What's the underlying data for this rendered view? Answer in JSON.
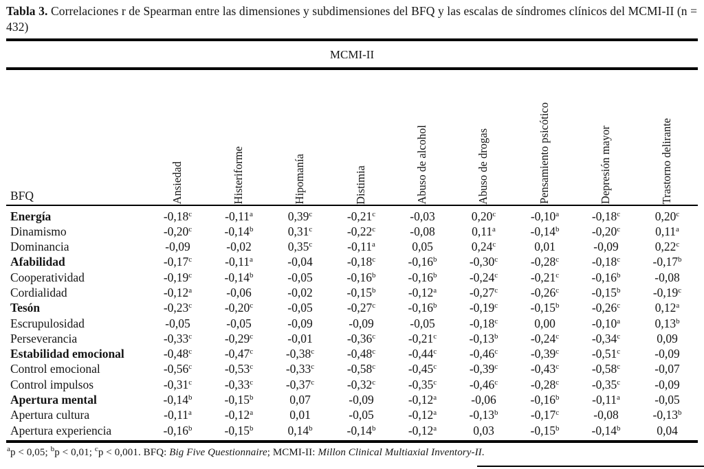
{
  "title": {
    "label": "Tabla 3.",
    "text": " Correlaciones r de Spearman entre las dimensiones y subdimensiones del BFQ y las escalas de síndromes clínicos del MCMI-II (n = 432)"
  },
  "group_header": "MCMI-II",
  "stub_header": "BFQ",
  "colors": {
    "text": "#141414",
    "background": "#ffffff",
    "rule": "#000000"
  },
  "table": {
    "columns": [
      "Ansiedad",
      "Histeriforme",
      "Hipomanía",
      "Distimia",
      "Abuso de alcohol",
      "Abuso de drogas",
      "Pensamiento psicótico",
      "Depresión mayor",
      "Trastorno delirante"
    ],
    "rows": [
      {
        "label": "Energía",
        "bold": true,
        "values": [
          "-0,18^c",
          "-0,11^a",
          "0,39^c",
          "-0,21^c",
          "-0,03",
          "0,20^c",
          "-0,10^a",
          "-0,18^c",
          "0,20^c"
        ]
      },
      {
        "label": "Dinamismo",
        "bold": false,
        "values": [
          "-0,20^c",
          "-0,14^b",
          "0,31^c",
          "-0,22^c",
          "-0,08",
          "0,11^a",
          "-0,14^b",
          "-0,20^c",
          "0,11^a"
        ]
      },
      {
        "label": "Dominancia",
        "bold": false,
        "values": [
          "-0,09",
          "-0,02",
          "0,35^c",
          "-0,11^a",
          "0,05",
          "0,24^c",
          "0,01",
          "-0,09",
          "0,22^c"
        ]
      },
      {
        "label": "Afabilidad",
        "bold": true,
        "values": [
          "-0,17^c",
          "-0,11^a",
          "-0,04",
          "-0,18^c",
          "-0,16^b",
          "-0,30^c",
          "-0,28^c",
          "-0,18^c",
          "-0,17^b"
        ]
      },
      {
        "label": "Cooperatividad",
        "bold": false,
        "values": [
          "-0,19^c",
          "-0,14^b",
          "-0,05",
          "-0,16^b",
          "-0,16^b",
          "-0,24^c",
          "-0,21^c",
          "-0,16^b",
          "-0,08"
        ]
      },
      {
        "label": "Cordialidad",
        "bold": false,
        "values": [
          "-0,12^a",
          "-0,06",
          "-0,02",
          "-0,15^b",
          "-0,12^a",
          "-0,27^c",
          "-0,26^c",
          "-0,15^b",
          "-0,19^c"
        ]
      },
      {
        "label": "Tesón",
        "bold": true,
        "values": [
          "-0,23^c",
          "-0,20^c",
          "-0,05",
          "-0,27^c",
          "-0,16^b",
          "-0,19^c",
          "-0,15^b",
          "-0,26^c",
          "0,12^a"
        ]
      },
      {
        "label": "Escrupulosidad",
        "bold": false,
        "values": [
          "-0,05",
          "-0,05",
          "-0,09",
          "-0,09",
          "-0,05",
          "-0,18^c",
          "0,00",
          "-0,10^a",
          "0,13^b"
        ]
      },
      {
        "label": "Perseverancia",
        "bold": false,
        "values": [
          "-0,33^c",
          "-0,29^c",
          "-0,01",
          "-0,36^c",
          "-0,21^c",
          "-0,13^b",
          "-0,24^c",
          "-0,34^c",
          "0,09"
        ]
      },
      {
        "label": "Estabilidad emocional",
        "bold": true,
        "values": [
          "-0,48^c",
          "-0,47^c",
          "-0,38^c",
          "-0,48^c",
          "-0,44^c",
          "-0,46^c",
          "-0,39^c",
          "-0,51^c",
          "-0,09"
        ]
      },
      {
        "label": "Control emocional",
        "bold": false,
        "values": [
          "-0,56^c",
          "-0,53^c",
          "-0,33^c",
          "-0,58^c",
          "-0,45^c",
          "-0,39^c",
          "-0,43^c",
          "-0,58^c",
          "-0,07"
        ]
      },
      {
        "label": "Control impulsos",
        "bold": false,
        "values": [
          "-0,31^c",
          "-0,33^c",
          "-0,37^c",
          "-0,32^c",
          "-0,35^c",
          "-0,46^c",
          "-0,28^c",
          "-0,35^c",
          "-0,09"
        ]
      },
      {
        "label": "Apertura mental",
        "bold": true,
        "values": [
          "-0,14^b",
          "-0,15^b",
          "0,07",
          "-0,09",
          "-0,12^a",
          "-0,06",
          "-0,16^b",
          "-0,11^a",
          "-0,05"
        ]
      },
      {
        "label": "Apertura cultura",
        "bold": false,
        "values": [
          "-0,11^a",
          "-0,12^a",
          "0,01",
          "-0,05",
          "-0,12^a",
          "-0,13^b",
          "-0,17^c",
          "-0,08",
          "-0,13^b"
        ]
      },
      {
        "label": "Apertura experiencia",
        "bold": false,
        "values": [
          "-0,16^b",
          "-0,15^b",
          "0,14^b",
          "-0,14^b",
          "-0,12^a",
          "0,03",
          "-0,15^b",
          "-0,14^b",
          "0,04"
        ]
      }
    ]
  },
  "footnote": {
    "significance": [
      {
        "sup": "a",
        "text": "p < 0,05; "
      },
      {
        "sup": "b",
        "text": "p < 0,01; "
      },
      {
        "sup": "c",
        "text": "p < 0,001. "
      }
    ],
    "abbreviations": [
      {
        "label": "BFQ: ",
        "name": "Big Five Questionnaire",
        "tail": "; "
      },
      {
        "label": "MCMI-II: ",
        "name": "Millon Clinical Multiaxial Inventory-II",
        "tail": "."
      }
    ]
  }
}
